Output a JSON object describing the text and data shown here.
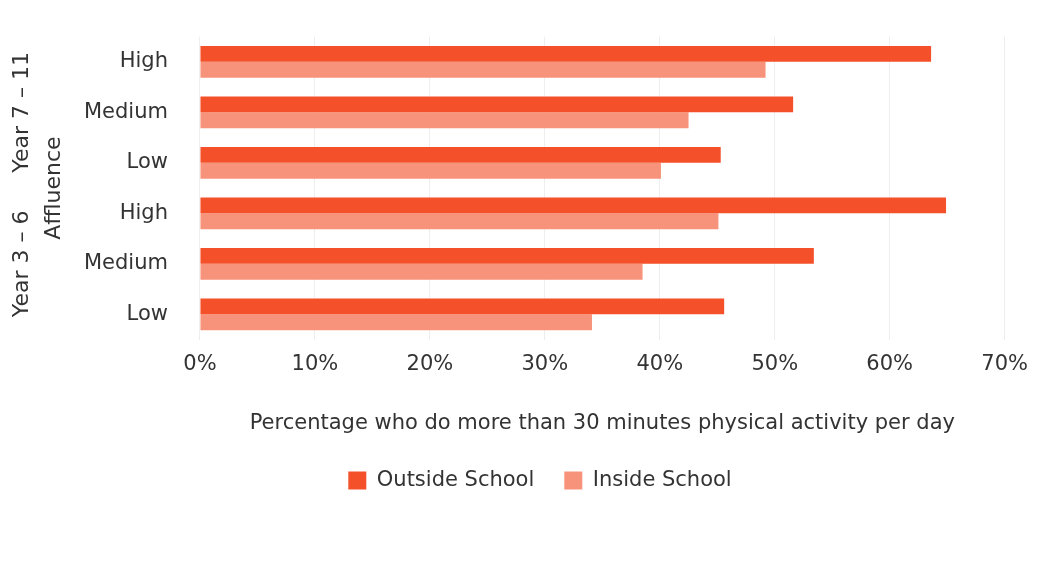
{
  "chart_data": {
    "type": "bar",
    "orientation": "horizontal",
    "xlabel": "Percentage who do more than 30 minutes physical activity per day",
    "ylabel": "Affluence",
    "categories": [
      "High",
      "Medium",
      "Low",
      "High",
      "Medium",
      "Low"
    ],
    "series": [
      {
        "name": "Outside School",
        "color": "#f4502a",
        "values": [
          63.6,
          51.6,
          45.3,
          64.9,
          53.4,
          45.6
        ]
      },
      {
        "name": "Inside School",
        "color": "#f7937a",
        "values": [
          49.2,
          42.5,
          40.1,
          45.1,
          38.5,
          34.1
        ]
      }
    ],
    "annotations": [
      "Year 7 – 11",
      "Year 3 – 6"
    ],
    "xlim": [
      0,
      70
    ],
    "xticks": [
      {
        "value": 0,
        "label": "0%"
      },
      {
        "value": 10,
        "label": "10%"
      },
      {
        "value": 20,
        "label": "20%"
      },
      {
        "value": 30,
        "label": "30%"
      },
      {
        "value": 40,
        "label": "40%"
      },
      {
        "value": 50,
        "label": "50%"
      },
      {
        "value": 60,
        "label": "60%"
      },
      {
        "value": 70,
        "label": "70%"
      }
    ],
    "grid": "x",
    "legend": "bottom"
  }
}
